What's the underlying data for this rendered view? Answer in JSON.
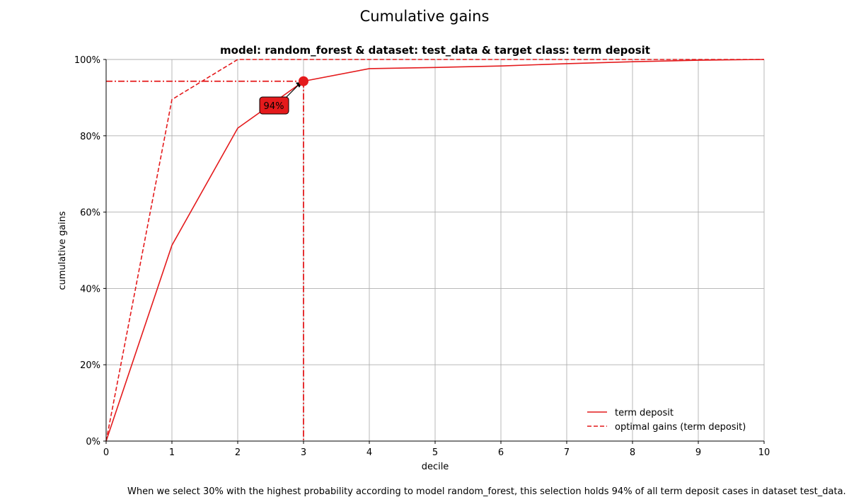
{
  "suptitle": "Cumulative gains",
  "footnote": "When we select 30% with the highest probability according to model random_forest, this selection holds 94% of all term deposit cases in dataset test_data.",
  "chart_data": {
    "type": "line",
    "title": "model: random_forest & dataset: test_data & target class: term deposit",
    "xlabel": "decile",
    "ylabel": "cumulative gains",
    "xlim": [
      0,
      10
    ],
    "ylim": [
      0,
      1
    ],
    "xticks": [
      0,
      1,
      2,
      3,
      4,
      5,
      6,
      7,
      8,
      9,
      10
    ],
    "yticks": [
      0,
      0.2,
      0.4,
      0.6,
      0.8,
      1.0
    ],
    "ytick_labels": [
      "0%",
      "20%",
      "40%",
      "60%",
      "80%",
      "100%"
    ],
    "grid": true,
    "legend_position": "lower-right",
    "series": [
      {
        "name": "term deposit",
        "style": "solid",
        "color": "#e41a1c",
        "x": [
          0,
          1,
          2,
          3,
          4,
          5,
          6,
          7,
          8,
          9,
          10
        ],
        "y": [
          0,
          0.513,
          0.82,
          0.943,
          0.976,
          0.979,
          0.983,
          0.989,
          0.994,
          0.998,
          1.0
        ]
      },
      {
        "name": "optimal gains (term deposit)",
        "style": "dashed",
        "color": "#e41a1c",
        "x": [
          0,
          1,
          2,
          3,
          4,
          5,
          6,
          7,
          8,
          9,
          10
        ],
        "y": [
          0,
          0.895,
          1.0,
          1.0,
          1.0,
          1.0,
          1.0,
          1.0,
          1.0,
          1.0,
          1.0
        ]
      }
    ],
    "highlight": {
      "x": 3,
      "y": 0.943,
      "label": "94%",
      "color": "#e41a1c"
    }
  }
}
